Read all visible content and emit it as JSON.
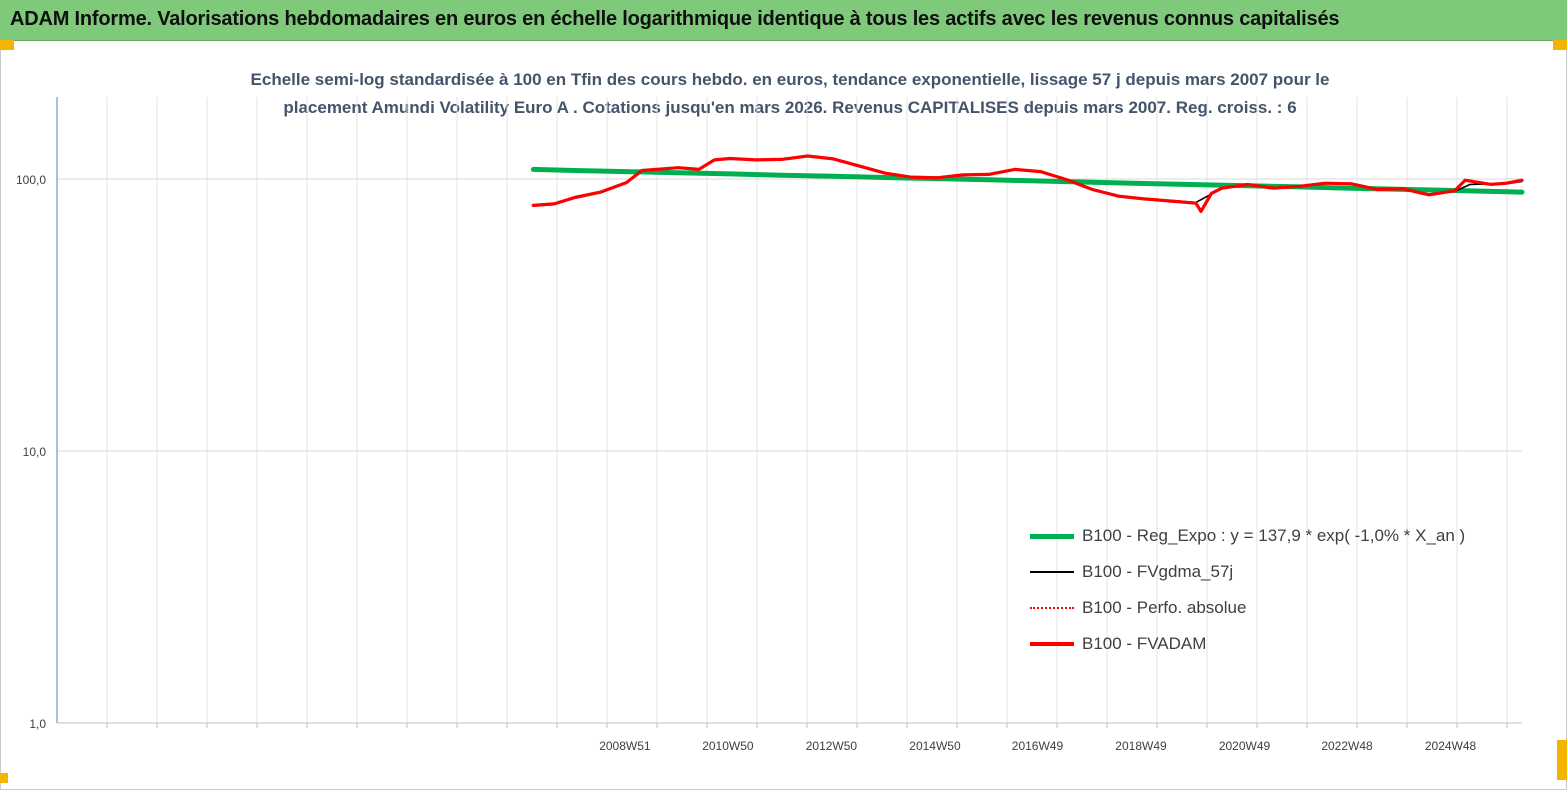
{
  "header": {
    "title": "ADAM Informe. Valorisations hebdomadaires en euros en échelle logarithmique identique à tous les actifs avec les revenus connus capitalisés"
  },
  "colors": {
    "header_bg": "#7fc97a",
    "corner_marker": "#f5b400",
    "reg_expo": "#00b050",
    "fvgdma": "#000000",
    "perfo": "#ff0000",
    "fvadam": "#ff0000",
    "title_text": "#44546a"
  },
  "chart_data": {
    "type": "line",
    "title_line1": "Echelle semi-log standardisée à 100 en Tfin des cours hebdo. en euros, tendance exponentielle, lissage 57 j depuis mars 2007 pour le",
    "title_line2": "placement Amundi Volatility Euro A . Cotations jusqu'en mars 2026. Revenus CAPITALISES depuis mars 2007.  Reg. croiss. : 6",
    "y_scale": "log",
    "ylim": [
      1,
      200
    ],
    "y_ticks": [
      {
        "value": 1,
        "label": "1,0"
      },
      {
        "value": 10,
        "label": "10,0"
      },
      {
        "value": 100,
        "label": "100,0"
      }
    ],
    "xlim": [
      1998.0,
      2026.3
    ],
    "x_ticks": [
      {
        "value": 2008.97,
        "label": "2008W51"
      },
      {
        "value": 2010.96,
        "label": "2010W50"
      },
      {
        "value": 2012.96,
        "label": "2012W50"
      },
      {
        "value": 2014.96,
        "label": "2014W50"
      },
      {
        "value": 2016.94,
        "label": "2016W49"
      },
      {
        "value": 2018.94,
        "label": "2018W49"
      },
      {
        "value": 2020.94,
        "label": "2020W49"
      },
      {
        "value": 2022.92,
        "label": "2022W48"
      },
      {
        "value": 2024.92,
        "label": "2024W48"
      }
    ],
    "grid": true,
    "legend_position": "bottom-right",
    "series": [
      {
        "name": "B100 - Reg_Expo : y = 137,9 * exp( -1,0% *  X_an )",
        "style": "thick-solid",
        "points": [
          [
            2007.2,
            108.5
          ],
          [
            2008.0,
            107.5
          ],
          [
            2009.0,
            106.5
          ],
          [
            2010.0,
            105.4
          ],
          [
            2011.0,
            104.4
          ],
          [
            2012.0,
            103.3
          ],
          [
            2013.0,
            102.3
          ],
          [
            2014.0,
            101.3
          ],
          [
            2015.0,
            100.3
          ],
          [
            2016.0,
            99.3
          ],
          [
            2017.0,
            98.3
          ],
          [
            2018.0,
            97.3
          ],
          [
            2019.0,
            96.3
          ],
          [
            2020.0,
            95.4
          ],
          [
            2021.0,
            94.4
          ],
          [
            2022.0,
            93.5
          ],
          [
            2023.0,
            92.5
          ],
          [
            2024.0,
            91.6
          ],
          [
            2025.0,
            90.7
          ],
          [
            2026.0,
            89.8
          ],
          [
            2026.3,
            89.5
          ]
        ]
      },
      {
        "name": "B100 - FVgdma_57j",
        "style": "thin-solid",
        "points": [
          [
            2007.2,
            79.5
          ],
          [
            2007.6,
            80.5
          ],
          [
            2008.0,
            85.0
          ],
          [
            2008.5,
            89.0
          ],
          [
            2009.0,
            97.0
          ],
          [
            2009.3,
            107.0
          ],
          [
            2010.0,
            110.5
          ],
          [
            2010.4,
            109.0
          ],
          [
            2010.7,
            117.0
          ],
          [
            2011.0,
            119.5
          ],
          [
            2011.5,
            118.0
          ],
          [
            2012.0,
            118.5
          ],
          [
            2012.5,
            121.0
          ],
          [
            2013.0,
            119.0
          ],
          [
            2013.5,
            112.0
          ],
          [
            2014.0,
            105.5
          ],
          [
            2014.5,
            102.0
          ],
          [
            2015.0,
            101.0
          ],
          [
            2015.5,
            103.0
          ],
          [
            2016.0,
            104.5
          ],
          [
            2016.5,
            108.0
          ],
          [
            2017.0,
            107.0
          ],
          [
            2017.5,
            100.0
          ],
          [
            2018.0,
            92.0
          ],
          [
            2018.5,
            87.0
          ],
          [
            2019.0,
            84.0
          ],
          [
            2019.5,
            83.5
          ],
          [
            2020.0,
            82.0
          ],
          [
            2020.3,
            88.0
          ],
          [
            2020.5,
            92.0
          ],
          [
            2021.0,
            95.0
          ],
          [
            2021.5,
            93.0
          ],
          [
            2022.0,
            94.5
          ],
          [
            2022.5,
            96.0
          ],
          [
            2023.0,
            96.5
          ],
          [
            2023.5,
            92.0
          ],
          [
            2024.0,
            92.5
          ],
          [
            2024.5,
            88.0
          ],
          [
            2025.0,
            90.0
          ],
          [
            2025.3,
            95.5
          ],
          [
            2025.7,
            96.0
          ],
          [
            2026.0,
            96.0
          ],
          [
            2026.3,
            98.0
          ]
        ]
      },
      {
        "name": "B100 - Perfo. absolue",
        "style": "dotted",
        "points": [
          [
            2007.2,
            80.0
          ],
          [
            2007.6,
            81.0
          ],
          [
            2008.0,
            85.5
          ],
          [
            2008.5,
            89.5
          ],
          [
            2009.0,
            97.0
          ],
          [
            2009.3,
            107.5
          ],
          [
            2010.0,
            110.0
          ],
          [
            2010.4,
            108.5
          ],
          [
            2010.7,
            117.5
          ],
          [
            2011.0,
            119.0
          ],
          [
            2011.5,
            117.5
          ],
          [
            2012.0,
            118.0
          ],
          [
            2012.5,
            121.5
          ],
          [
            2013.0,
            118.5
          ],
          [
            2013.5,
            111.5
          ],
          [
            2014.0,
            105.0
          ],
          [
            2014.5,
            101.5
          ],
          [
            2015.0,
            101.0
          ],
          [
            2015.5,
            103.5
          ],
          [
            2016.0,
            104.0
          ],
          [
            2016.5,
            108.5
          ],
          [
            2017.0,
            106.5
          ],
          [
            2017.5,
            99.5
          ],
          [
            2018.0,
            91.5
          ],
          [
            2018.5,
            86.5
          ],
          [
            2019.0,
            84.5
          ],
          [
            2019.5,
            83.0
          ],
          [
            2020.0,
            81.5
          ],
          [
            2020.1,
            76.0
          ],
          [
            2020.3,
            88.5
          ],
          [
            2020.5,
            92.5
          ],
          [
            2021.0,
            95.5
          ],
          [
            2021.5,
            92.5
          ],
          [
            2022.0,
            94.0
          ],
          [
            2022.5,
            96.5
          ],
          [
            2023.0,
            96.0
          ],
          [
            2023.5,
            91.5
          ],
          [
            2024.0,
            92.0
          ],
          [
            2024.5,
            87.5
          ],
          [
            2025.0,
            90.5
          ],
          [
            2025.2,
            99.0
          ],
          [
            2025.7,
            95.5
          ],
          [
            2026.0,
            96.5
          ],
          [
            2026.3,
            99.0
          ]
        ]
      },
      {
        "name": "B100 - FVADAM",
        "style": "thick-solid",
        "points": [
          [
            2007.2,
            80.0
          ],
          [
            2007.6,
            81.0
          ],
          [
            2008.0,
            85.5
          ],
          [
            2008.5,
            89.5
          ],
          [
            2009.0,
            97.0
          ],
          [
            2009.3,
            107.5
          ],
          [
            2010.0,
            110.0
          ],
          [
            2010.4,
            108.5
          ],
          [
            2010.7,
            117.5
          ],
          [
            2011.0,
            119.0
          ],
          [
            2011.5,
            117.5
          ],
          [
            2012.0,
            118.0
          ],
          [
            2012.5,
            121.5
          ],
          [
            2013.0,
            118.5
          ],
          [
            2013.5,
            111.5
          ],
          [
            2014.0,
            105.0
          ],
          [
            2014.5,
            101.5
          ],
          [
            2015.0,
            101.0
          ],
          [
            2015.5,
            103.5
          ],
          [
            2016.0,
            104.0
          ],
          [
            2016.5,
            108.5
          ],
          [
            2017.0,
            106.5
          ],
          [
            2017.5,
            99.5
          ],
          [
            2018.0,
            91.5
          ],
          [
            2018.5,
            86.5
          ],
          [
            2019.0,
            84.5
          ],
          [
            2019.5,
            83.0
          ],
          [
            2020.0,
            81.5
          ],
          [
            2020.1,
            76.0
          ],
          [
            2020.3,
            88.5
          ],
          [
            2020.5,
            92.5
          ],
          [
            2021.0,
            95.5
          ],
          [
            2021.5,
            92.5
          ],
          [
            2022.0,
            94.0
          ],
          [
            2022.5,
            96.5
          ],
          [
            2023.0,
            96.0
          ],
          [
            2023.5,
            91.5
          ],
          [
            2024.0,
            92.0
          ],
          [
            2024.5,
            87.5
          ],
          [
            2025.0,
            90.5
          ],
          [
            2025.2,
            99.0
          ],
          [
            2025.7,
            95.5
          ],
          [
            2026.0,
            96.5
          ],
          [
            2026.3,
            99.0
          ]
        ]
      }
    ]
  }
}
